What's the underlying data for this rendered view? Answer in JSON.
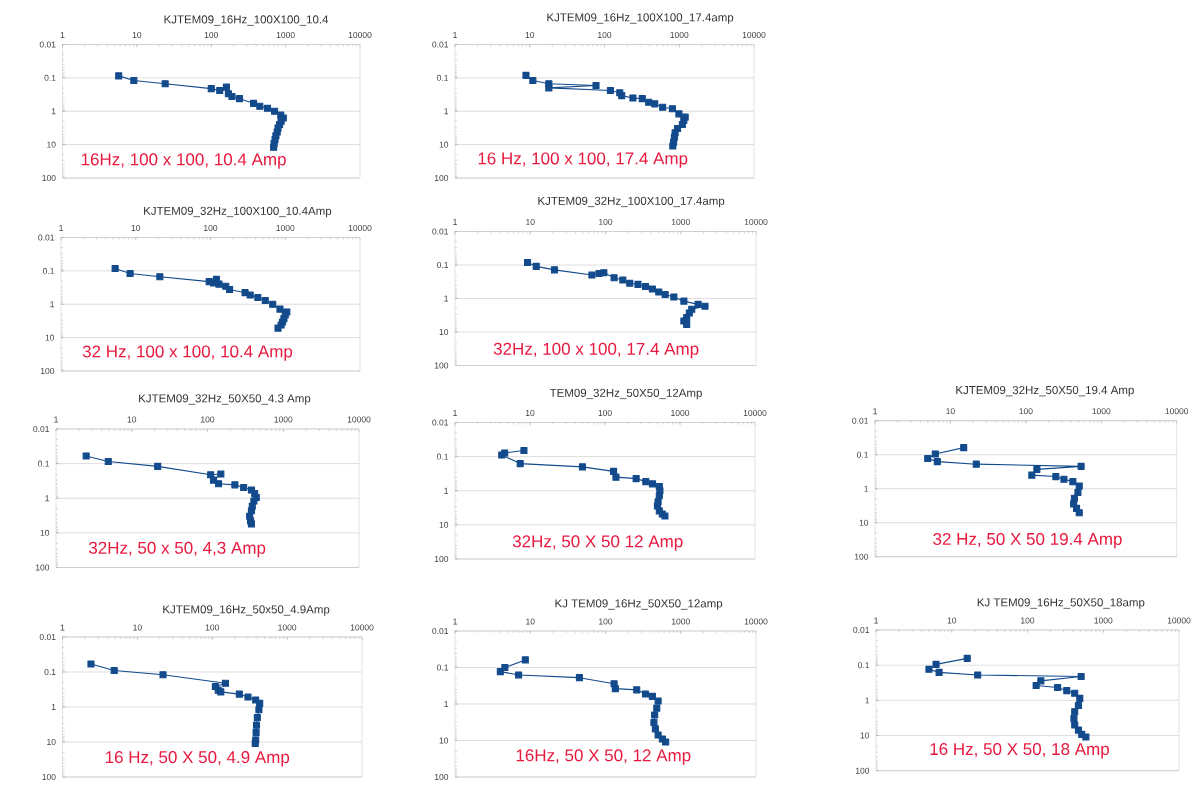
{
  "chart_data": [
    {
      "type": "line",
      "title": "KJTEM09_16Hz_100X100_10.4",
      "annotations": [
        "16Hz, 100 x 100, 10.4 Amp"
      ],
      "x": [
        5.7,
        9.1,
        24,
        100,
        130,
        160,
        170,
        190,
        240,
        370,
        450,
        570,
        710,
        860,
        930,
        870,
        830,
        790,
        770,
        740,
        720,
        700,
        690
      ],
      "values": [
        0.087,
        0.12,
        0.15,
        0.21,
        0.24,
        0.19,
        0.3,
        0.36,
        0.42,
        0.58,
        0.71,
        0.81,
        1.0,
        1.3,
        1.6,
        2.0,
        2.5,
        3.2,
        4.2,
        5.4,
        7.1,
        9.3,
        12
      ],
      "color": "#124a8c",
      "marker": "square",
      "line_style": "solid",
      "log": "xy",
      "xlim": [
        1,
        10000
      ],
      "ylim": [
        100,
        0.01
      ],
      "xticks": [
        1,
        10,
        100,
        1000,
        10000
      ],
      "yticks": [
        0.01,
        0.1,
        1,
        10,
        100
      ],
      "grid": "y"
    },
    {
      "type": "line",
      "title": "KJTEM09_16Hz_100X100_17.4amp",
      "annotations": [
        "16 Hz, 100 x 100, 17.4 Amp"
      ],
      "x": [
        8.9,
        11,
        18,
        77,
        18,
        120,
        160,
        170,
        240,
        320,
        390,
        470,
        600,
        810,
        990,
        1200,
        1150,
        1100,
        950,
        880,
        860,
        840,
        820
      ],
      "values": [
        0.084,
        0.12,
        0.15,
        0.17,
        0.2,
        0.24,
        0.28,
        0.34,
        0.4,
        0.42,
        0.54,
        0.6,
        0.76,
        0.84,
        1.2,
        1.5,
        1.9,
        2.5,
        3.3,
        4.4,
        6.0,
        8.5,
        11
      ],
      "color": "#124a8c",
      "marker": "square",
      "line_style": "solid",
      "log": "xy",
      "xlim": [
        1,
        10000
      ],
      "ylim": [
        100,
        0.01
      ],
      "xticks": [
        1,
        10,
        100,
        1000,
        10000
      ],
      "yticks": [
        0.01,
        0.1,
        1,
        10,
        100
      ],
      "grid": "y"
    },
    {
      "type": "line",
      "title": "KJTEM09_32Hz_100X100_10.4Amp",
      "annotations": [
        "32 Hz, 100 x 100, 10.4 Amp"
      ],
      "x": [
        5.3,
        8.4,
        21,
        96,
        110,
        120,
        130,
        160,
        180,
        290,
        340,
        430,
        540,
        680,
        850,
        1050,
        1000,
        960,
        920,
        880,
        800
      ],
      "values": [
        0.085,
        0.12,
        0.15,
        0.21,
        0.23,
        0.18,
        0.25,
        0.29,
        0.36,
        0.45,
        0.53,
        0.63,
        0.77,
        1.0,
        1.4,
        1.7,
        2.1,
        2.7,
        3.4,
        4.2,
        5.2
      ],
      "color": "#124a8c",
      "marker": "square",
      "line_style": "solid",
      "log": "xy",
      "xlim": [
        1,
        10000
      ],
      "ylim": [
        100,
        0.01
      ],
      "xticks": [
        1,
        10,
        100,
        1000,
        10000
      ],
      "yticks": [
        0.01,
        0.1,
        1,
        10,
        100
      ],
      "grid": "y"
    },
    {
      "type": "line",
      "title": "KJTEM09_32Hz_100X100_17.4amp",
      "annotations": [
        "32Hz, 100 x 100, 17.4 Amp"
      ],
      "x": [
        9.2,
        12,
        21,
        66,
        82,
        95,
        130,
        170,
        210,
        270,
        340,
        420,
        510,
        620,
        810,
        1100,
        1700,
        2100,
        1400,
        1300,
        1200,
        1100,
        1200
      ],
      "values": [
        0.084,
        0.11,
        0.14,
        0.2,
        0.18,
        0.17,
        0.24,
        0.28,
        0.35,
        0.38,
        0.44,
        0.52,
        0.64,
        0.76,
        0.9,
        1.2,
        1.5,
        1.7,
        2.1,
        2.7,
        3.7,
        4.7,
        6.0
      ],
      "color": "#124a8c",
      "marker": "square",
      "line_style": "solid",
      "log": "xy",
      "xlim": [
        1,
        10000
      ],
      "ylim": [
        100,
        0.01
      ],
      "xticks": [
        1,
        10,
        100,
        1000,
        10000
      ],
      "yticks": [
        0.01,
        0.1,
        1,
        10,
        100
      ],
      "grid": "y"
    },
    {
      "type": "line",
      "title": "KJTEM09_32Hz_50X50_4.3 Amp",
      "annotations": [
        "32Hz, 50 x 50, 4,3 Amp"
      ],
      "x": [
        2.5,
        4.9,
        22,
        110,
        150,
        120,
        140,
        230,
        300,
        380,
        420,
        440,
        410,
        390,
        380,
        360,
        370,
        380
      ],
      "values": [
        0.06,
        0.087,
        0.12,
        0.21,
        0.2,
        0.3,
        0.38,
        0.41,
        0.49,
        0.58,
        0.73,
        0.95,
        1.2,
        1.7,
        2.3,
        3.3,
        4.5,
        5.5
      ],
      "color": "#124a8c",
      "marker": "square",
      "line_style": "solid",
      "log": "xy",
      "xlim": [
        1,
        10000
      ],
      "ylim": [
        100,
        0.01
      ],
      "xticks": [
        1,
        10,
        100,
        1000,
        10000
      ],
      "yticks": [
        0.01,
        0.1,
        1,
        10,
        100
      ],
      "grid": "y"
    },
    {
      "type": "line",
      "title": "TEM09_32Hz_50X50_12Amp",
      "annotations": [
        "32Hz, 50 X 50 12 Amp"
      ],
      "x": [
        8.3,
        4.6,
        4.2,
        7.4,
        50,
        130,
        140,
        260,
        350,
        430,
        530,
        540,
        530,
        510,
        500,
        530,
        580,
        630
      ],
      "values": [
        0.066,
        0.078,
        0.09,
        0.16,
        0.2,
        0.27,
        0.4,
        0.44,
        0.54,
        0.63,
        0.75,
        1.0,
        1.4,
        2.1,
        2.8,
        3.9,
        4.8,
        5.5
      ],
      "color": "#124a8c",
      "marker": "square",
      "line_style": "solid",
      "log": "xy",
      "xlim": [
        1,
        10000
      ],
      "ylim": [
        100,
        0.01
      ],
      "xticks": [
        1,
        10,
        100,
        1000,
        10000
      ],
      "yticks": [
        0.01,
        0.1,
        1,
        10,
        100
      ],
      "grid": "y"
    },
    {
      "type": "line",
      "title": "KJTEM09_32Hz_50X50_19.4 Amp",
      "annotations": [
        "32 Hz, 50 X 50 19.4 Amp"
      ],
      "x": [
        15,
        6.3,
        5.0,
        6.7,
        22,
        540,
        140,
        120,
        250,
        320,
        420,
        510,
        490,
        440,
        430,
        470,
        510
      ],
      "values": [
        0.062,
        0.095,
        0.13,
        0.16,
        0.19,
        0.22,
        0.27,
        0.4,
        0.44,
        0.53,
        0.62,
        0.84,
        1.3,
        1.9,
        2.8,
        3.8,
        5.1
      ],
      "color": "#124a8c",
      "marker": "square",
      "line_style": "solid",
      "log": "xy",
      "xlim": [
        1,
        10000
      ],
      "ylim": [
        100,
        0.01
      ],
      "xticks": [
        1,
        10,
        100,
        1000,
        10000
      ],
      "yticks": [
        0.01,
        0.1,
        1,
        10,
        100
      ],
      "grid": "y"
    },
    {
      "type": "line",
      "title": "KJTEM09_16Hz_50x50_4.9Amp",
      "annotations": [
        "16 Hz, 50 X 50, 4.9 Amp"
      ],
      "x": [
        2.4,
        4.9,
        22,
        150,
        110,
        120,
        130,
        230,
        300,
        380,
        430,
        420,
        400,
        390,
        385,
        380,
        375
      ],
      "values": [
        0.059,
        0.091,
        0.12,
        0.21,
        0.26,
        0.33,
        0.37,
        0.43,
        0.52,
        0.63,
        0.79,
        1.2,
        2.0,
        3.3,
        5.4,
        8.8,
        11
      ],
      "color": "#124a8c",
      "marker": "square",
      "line_style": "solid",
      "log": "xy",
      "xlim": [
        1,
        10000
      ],
      "ylim": [
        100,
        0.01
      ],
      "xticks": [
        1,
        10,
        100,
        1000,
        10000
      ],
      "yticks": [
        0.01,
        0.1,
        1,
        10,
        100
      ],
      "grid": "y"
    },
    {
      "type": "line",
      "title": "KJ TEM09_16Hz_50X50_12amp",
      "annotations": [
        "16Hz, 50 X 50, 12 Amp"
      ],
      "x": [
        8.6,
        4.6,
        4.0,
        7.0,
        45,
        130,
        135,
        260,
        340,
        420,
        500,
        480,
        450,
        440,
        460,
        500,
        570,
        630
      ],
      "values": [
        0.062,
        0.1,
        0.13,
        0.16,
        0.19,
        0.28,
        0.38,
        0.41,
        0.53,
        0.62,
        0.83,
        1.3,
        2.0,
        3.2,
        4.8,
        7.1,
        9.1,
        11
      ],
      "color": "#124a8c",
      "marker": "square",
      "line_style": "solid",
      "log": "xy",
      "xlim": [
        1,
        10000
      ],
      "ylim": [
        100,
        0.01
      ],
      "xticks": [
        1,
        10,
        100,
        1000,
        10000
      ],
      "yticks": [
        0.01,
        0.1,
        1,
        10,
        100
      ],
      "grid": "y"
    },
    {
      "type": "line",
      "title": "KJ TEM09_16Hz_50X50_18amp",
      "annotations": [
        "16 Hz, 50 X 50, 18 Amp"
      ],
      "x": [
        16,
        6.2,
        5.0,
        6.8,
        22,
        510,
        150,
        130,
        250,
        330,
        420,
        490,
        470,
        420,
        410,
        420,
        470,
        520,
        590
      ],
      "values": [
        0.064,
        0.095,
        0.13,
        0.16,
        0.19,
        0.21,
        0.28,
        0.38,
        0.43,
        0.53,
        0.63,
        0.88,
        1.4,
        2.1,
        3.3,
        5.0,
        7.0,
        9.3,
        11
      ],
      "color": "#124a8c",
      "marker": "square",
      "line_style": "solid",
      "log": "xy",
      "xlim": [
        1,
        10000
      ],
      "ylim": [
        100,
        0.01
      ],
      "xticks": [
        1,
        10,
        100,
        1000,
        10000
      ],
      "yticks": [
        0.01,
        0.1,
        1,
        10,
        100
      ],
      "grid": "y"
    }
  ]
}
